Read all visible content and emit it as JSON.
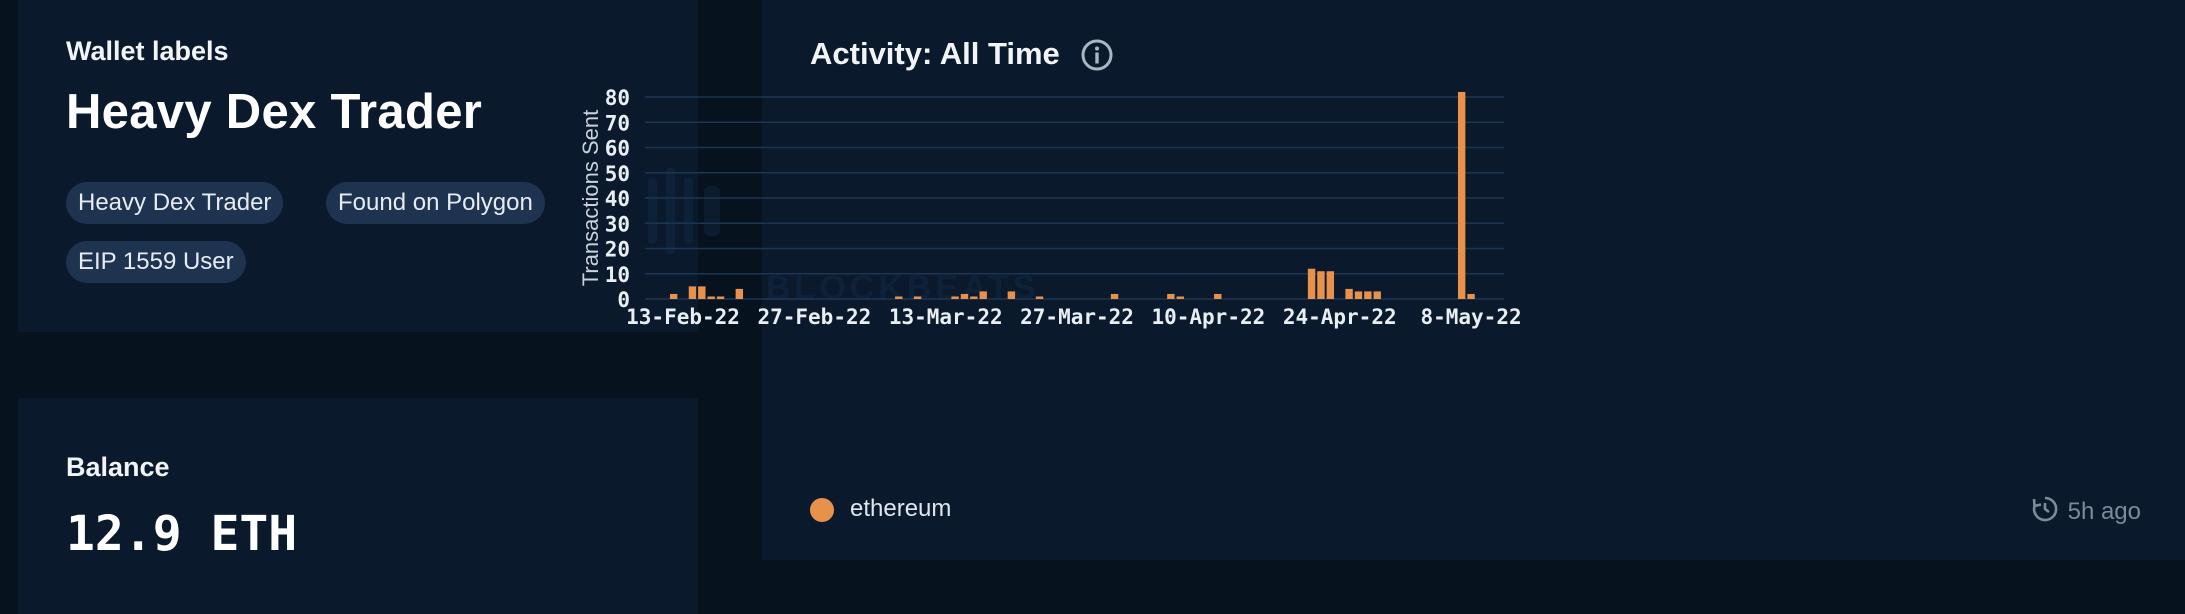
{
  "wallet_labels": {
    "heading": "Wallet labels",
    "title": "Heavy Dex Trader",
    "tags": [
      "Heavy Dex Trader",
      "Found on Polygon",
      "EIP 1559 User"
    ]
  },
  "balance": {
    "heading": "Balance",
    "value": "12.9 ETH"
  },
  "activity": {
    "title": "Activity: All Time",
    "info_icon": "info-circle-icon",
    "legend": {
      "label": "ethereum",
      "color": "#e8914a"
    },
    "refresh": {
      "icon": "refresh-clock-icon",
      "text": "5h ago"
    }
  },
  "watermark": {
    "text": "BLOCKBEATS"
  },
  "colors": {
    "page_bg": "#07121f",
    "panel_bg": "#0a1a2c",
    "tag_bg": "#1d3350",
    "bar": "#e8914a",
    "grid": "#1c3553"
  },
  "chart_data": {
    "type": "bar",
    "title": "",
    "xlabel": "",
    "ylabel": "Transactions Sent",
    "ylim": [
      0,
      82
    ],
    "yticks": [
      0,
      10,
      20,
      30,
      40,
      50,
      60,
      70,
      80
    ],
    "x_start": "2022-02-10",
    "xtick_labels": [
      {
        "date": "2022-02-13",
        "label": "13-Feb-22"
      },
      {
        "date": "2022-02-27",
        "label": "27-Feb-22"
      },
      {
        "date": "2022-03-13",
        "label": "13-Mar-22"
      },
      {
        "date": "2022-03-27",
        "label": "27-Mar-22"
      },
      {
        "date": "2022-04-10",
        "label": "10-Apr-22"
      },
      {
        "date": "2022-04-24",
        "label": "24-Apr-22"
      },
      {
        "date": "2022-05-08",
        "label": "8-May-22"
      }
    ],
    "series": [
      {
        "name": "ethereum",
        "points": [
          {
            "x": "2022-02-12",
            "y": 2
          },
          {
            "x": "2022-02-14",
            "y": 5
          },
          {
            "x": "2022-02-15",
            "y": 5
          },
          {
            "x": "2022-02-16",
            "y": 1
          },
          {
            "x": "2022-02-17",
            "y": 1
          },
          {
            "x": "2022-02-19",
            "y": 4
          },
          {
            "x": "2022-03-08",
            "y": 1
          },
          {
            "x": "2022-03-10",
            "y": 1
          },
          {
            "x": "2022-03-14",
            "y": 1
          },
          {
            "x": "2022-03-15",
            "y": 2
          },
          {
            "x": "2022-03-16",
            "y": 1
          },
          {
            "x": "2022-03-17",
            "y": 3
          },
          {
            "x": "2022-03-20",
            "y": 3
          },
          {
            "x": "2022-03-23",
            "y": 1
          },
          {
            "x": "2022-03-31",
            "y": 2
          },
          {
            "x": "2022-04-06",
            "y": 2
          },
          {
            "x": "2022-04-07",
            "y": 1
          },
          {
            "x": "2022-04-11",
            "y": 2
          },
          {
            "x": "2022-04-21",
            "y": 12
          },
          {
            "x": "2022-04-22",
            "y": 11
          },
          {
            "x": "2022-04-23",
            "y": 11
          },
          {
            "x": "2022-04-25",
            "y": 4
          },
          {
            "x": "2022-04-26",
            "y": 3
          },
          {
            "x": "2022-04-27",
            "y": 3
          },
          {
            "x": "2022-04-28",
            "y": 3
          },
          {
            "x": "2022-05-07",
            "y": 82
          },
          {
            "x": "2022-05-08",
            "y": 2
          }
        ]
      }
    ],
    "grid": true,
    "legend_position": "bottom-left"
  }
}
